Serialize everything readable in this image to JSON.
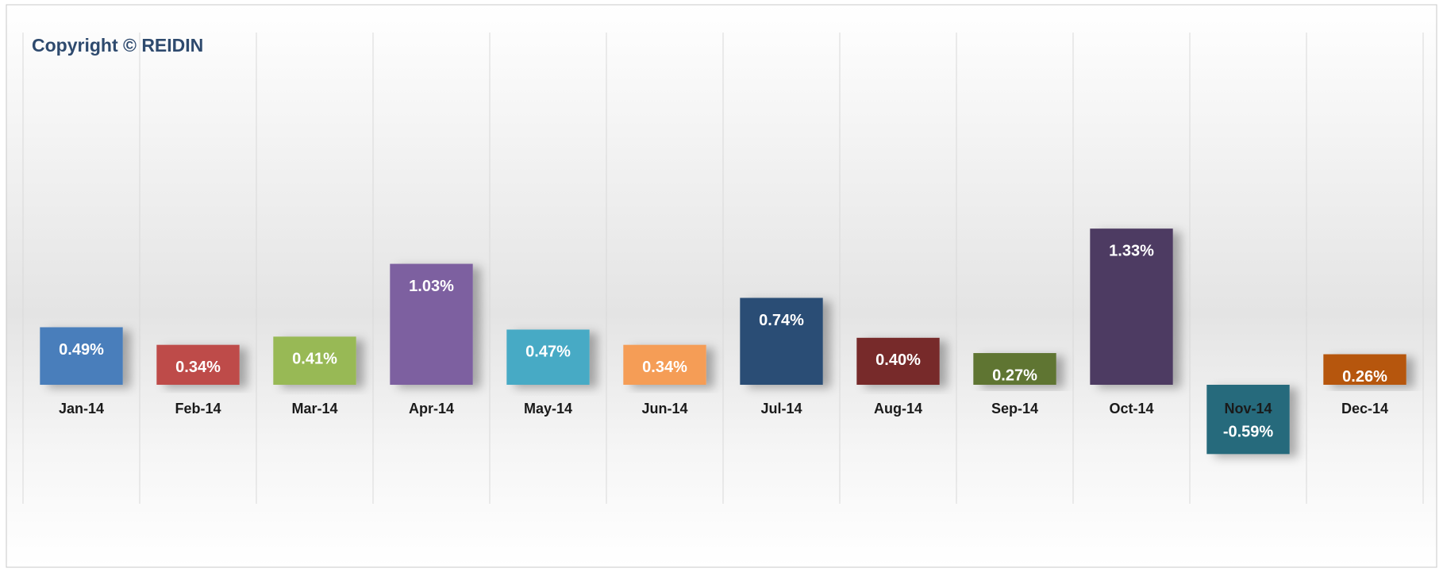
{
  "chart_data": {
    "type": "bar",
    "annotation": "Copyright © REIDIN",
    "categories": [
      "Jan-14",
      "Feb-14",
      "Mar-14",
      "Apr-14",
      "May-14",
      "Jun-14",
      "Jul-14",
      "Aug-14",
      "Sep-14",
      "Oct-14",
      "Nov-14",
      "Dec-14"
    ],
    "values": [
      0.49,
      0.34,
      0.41,
      1.03,
      0.47,
      0.34,
      0.74,
      0.4,
      0.27,
      1.33,
      -0.59,
      0.26
    ],
    "value_labels": [
      "0.49%",
      "0.34%",
      "0.41%",
      "1.03%",
      "0.47%",
      "0.34%",
      "0.74%",
      "0.40%",
      "0.27%",
      "1.33%",
      "-0.59%",
      "0.26%"
    ],
    "colors": [
      "#4a7ebb",
      "#be4b48",
      "#98b954",
      "#7d60a0",
      "#46aac5",
      "#f59d56",
      "#2c4d75",
      "#772c2a",
      "#5f7530",
      "#4d3b62",
      "#276a7c",
      "#b65708"
    ],
    "grid": true
  }
}
